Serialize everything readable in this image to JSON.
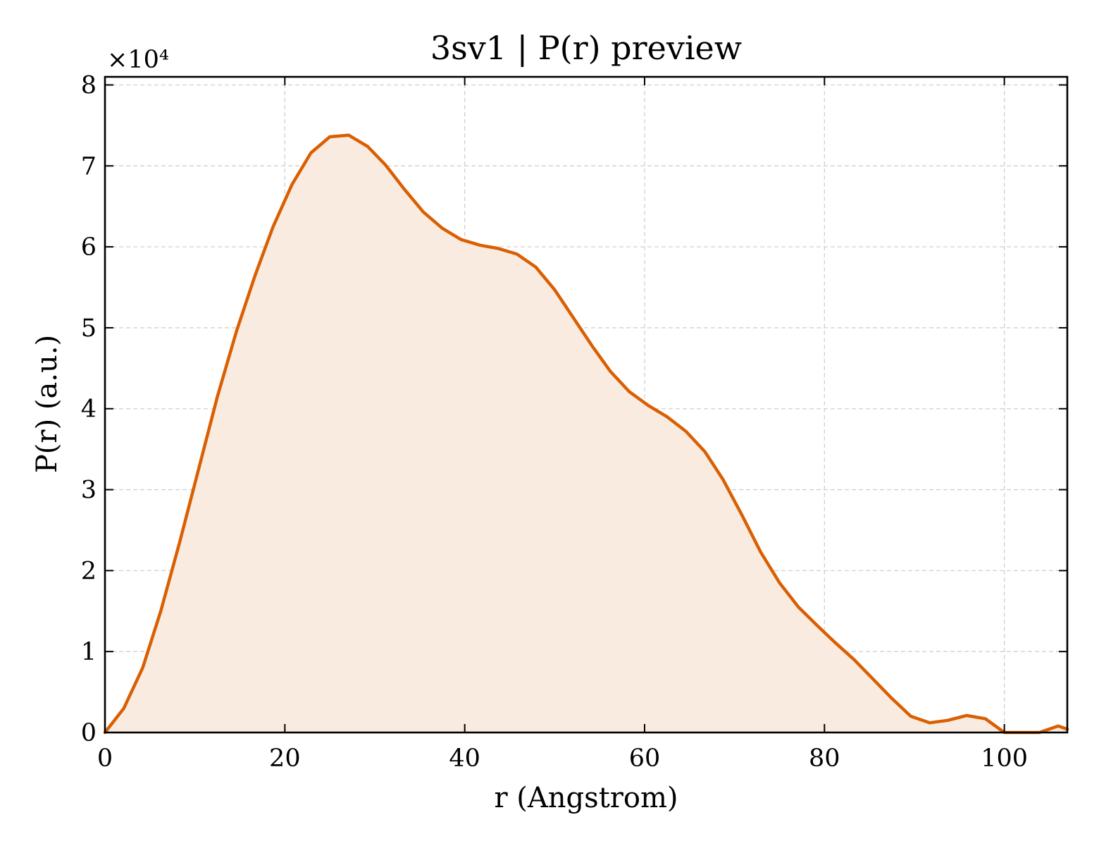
{
  "chart_data": {
    "type": "area",
    "title": "3sv1 | P(r) preview",
    "xlabel": "r (Angstrom)",
    "ylabel": "P(r) (a.u.)",
    "y_multiplier_label": "×10⁴",
    "xlim": [
      0,
      107
    ],
    "ylim": [
      0,
      81000
    ],
    "x_ticks": [
      0,
      20,
      40,
      60,
      80,
      100
    ],
    "y_ticks": [
      0,
      10000,
      20000,
      30000,
      40000,
      50000,
      60000,
      70000,
      80000
    ],
    "y_tick_labels": [
      "0",
      "1",
      "2",
      "3",
      "4",
      "5",
      "6",
      "7",
      "8"
    ],
    "x_tick_labels": [
      "0",
      "20",
      "40",
      "60",
      "80",
      "100"
    ],
    "grid": true,
    "line_color": "#d95f02",
    "fill_color": "#f9ebe0",
    "series": [
      {
        "x": [
          0,
          2.1,
          4.2,
          6.2,
          8.3,
          10.4,
          12.5,
          14.6,
          16.7,
          18.7,
          20.8,
          22.9,
          25.0,
          27.1,
          29.2,
          31.2,
          33.3,
          35.4,
          37.5,
          39.6,
          41.7,
          43.7,
          45.8,
          47.9,
          50.0,
          52.1,
          54.2,
          56.2,
          58.3,
          60.4,
          62.5,
          64.6,
          66.7,
          68.7,
          70.8,
          72.9,
          75.0,
          77.1,
          79.2,
          81.2,
          83.3,
          85.4,
          87.5,
          89.6,
          91.7,
          93.7,
          95.8,
          97.9,
          100.0,
          102.1,
          103.9,
          106.0,
          107.0
        ],
        "y": [
          0,
          3000,
          8000,
          15000,
          23500,
          32500,
          41500,
          49500,
          56500,
          62500,
          67700,
          71600,
          73600,
          73800,
          72400,
          70100,
          67100,
          64300,
          62300,
          60900,
          60200,
          59800,
          59100,
          57500,
          54700,
          51200,
          47700,
          44600,
          42100,
          40400,
          39000,
          37200,
          34700,
          31300,
          26900,
          22300,
          18500,
          15500,
          13200,
          11100,
          9000,
          6600,
          4200,
          2000,
          1200,
          1500,
          2100,
          1700,
          0,
          0,
          0,
          800,
          400
        ]
      }
    ]
  }
}
